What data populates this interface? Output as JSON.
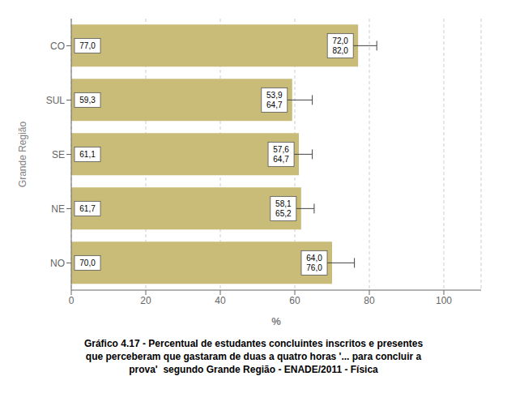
{
  "chart_data": {
    "type": "bar",
    "orientation": "horizontal",
    "categories": [
      "NO",
      "NE",
      "SE",
      "SUL",
      "CO"
    ],
    "values": [
      70.0,
      61.7,
      61.1,
      59.3,
      77.0
    ],
    "value_labels": [
      "70,0",
      "61,7",
      "61,1",
      "59,3",
      "77,0"
    ],
    "data_labels": true,
    "color": "#c8bc78",
    "error_low": [
      64.0,
      58.1,
      57.6,
      53.9,
      72.0
    ],
    "error_high": [
      76.0,
      65.2,
      64.7,
      64.7,
      82.0
    ],
    "annotations": [
      {
        "category": "NO",
        "text": "64,0\n76,0"
      },
      {
        "category": "NE",
        "text": "58,1\n65,2"
      },
      {
        "category": "SE",
        "text": "57,6\n64,7"
      },
      {
        "category": "SUL",
        "text": "53,9\n64,7"
      },
      {
        "category": "CO",
        "text": "72,0\n82,0"
      }
    ],
    "xlabel": "%",
    "ylabel": "Grande Região",
    "xlim": [
      0,
      110
    ],
    "xticks": [
      0,
      20,
      40,
      60,
      80,
      100
    ],
    "grid": true,
    "caption": [
      "Gráfico 4.17 - Percentual de estudantes concluintes inscritos e presentes",
      "que perceberam que gastaram de duas a quatro horas '... para concluir a",
      "prova'  segundo Grande Região - ENADE/2011 - Física"
    ]
  }
}
